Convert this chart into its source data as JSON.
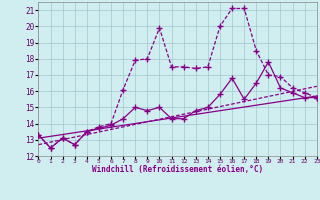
{
  "xlabel": "Windchill (Refroidissement éolien,°C)",
  "xlim": [
    0,
    23
  ],
  "ylim": [
    12,
    21.5
  ],
  "yticks": [
    12,
    13,
    14,
    15,
    16,
    17,
    18,
    19,
    20,
    21
  ],
  "xticks": [
    0,
    1,
    2,
    3,
    4,
    5,
    6,
    7,
    8,
    9,
    10,
    11,
    12,
    13,
    14,
    15,
    16,
    17,
    18,
    19,
    20,
    21,
    22,
    23
  ],
  "bg_color": "#d0eef0",
  "grid_color": "#a0c8d0",
  "line_color": "#880088",
  "line1_x": [
    0,
    1,
    2,
    3,
    4,
    5,
    6,
    7,
    8,
    9,
    10,
    11,
    12,
    13,
    14,
    15,
    16,
    17,
    18,
    19,
    20,
    21,
    22,
    23
  ],
  "line1_y": [
    13.3,
    12.5,
    13.1,
    12.7,
    13.5,
    13.7,
    13.9,
    14.3,
    15.0,
    14.8,
    15.0,
    14.3,
    14.3,
    14.8,
    15.0,
    15.8,
    16.8,
    15.5,
    16.5,
    17.8,
    16.2,
    15.9,
    15.6,
    15.6
  ],
  "line2_x": [
    0,
    1,
    2,
    3,
    4,
    5,
    6,
    7,
    8,
    9,
    10,
    11,
    12,
    13,
    14,
    15,
    16,
    17,
    18,
    19,
    20,
    21,
    22,
    23
  ],
  "line2_y": [
    13.3,
    12.5,
    13.1,
    12.7,
    13.5,
    13.8,
    14.0,
    16.1,
    17.9,
    18.0,
    19.9,
    17.5,
    17.5,
    17.4,
    17.5,
    20.0,
    21.1,
    21.1,
    18.5,
    17.0,
    16.9,
    16.2,
    15.9,
    15.6
  ],
  "line3_x": [
    0,
    23
  ],
  "line3_y": [
    13.1,
    15.7
  ],
  "line4_x": [
    0,
    23
  ],
  "line4_y": [
    12.7,
    16.3
  ]
}
